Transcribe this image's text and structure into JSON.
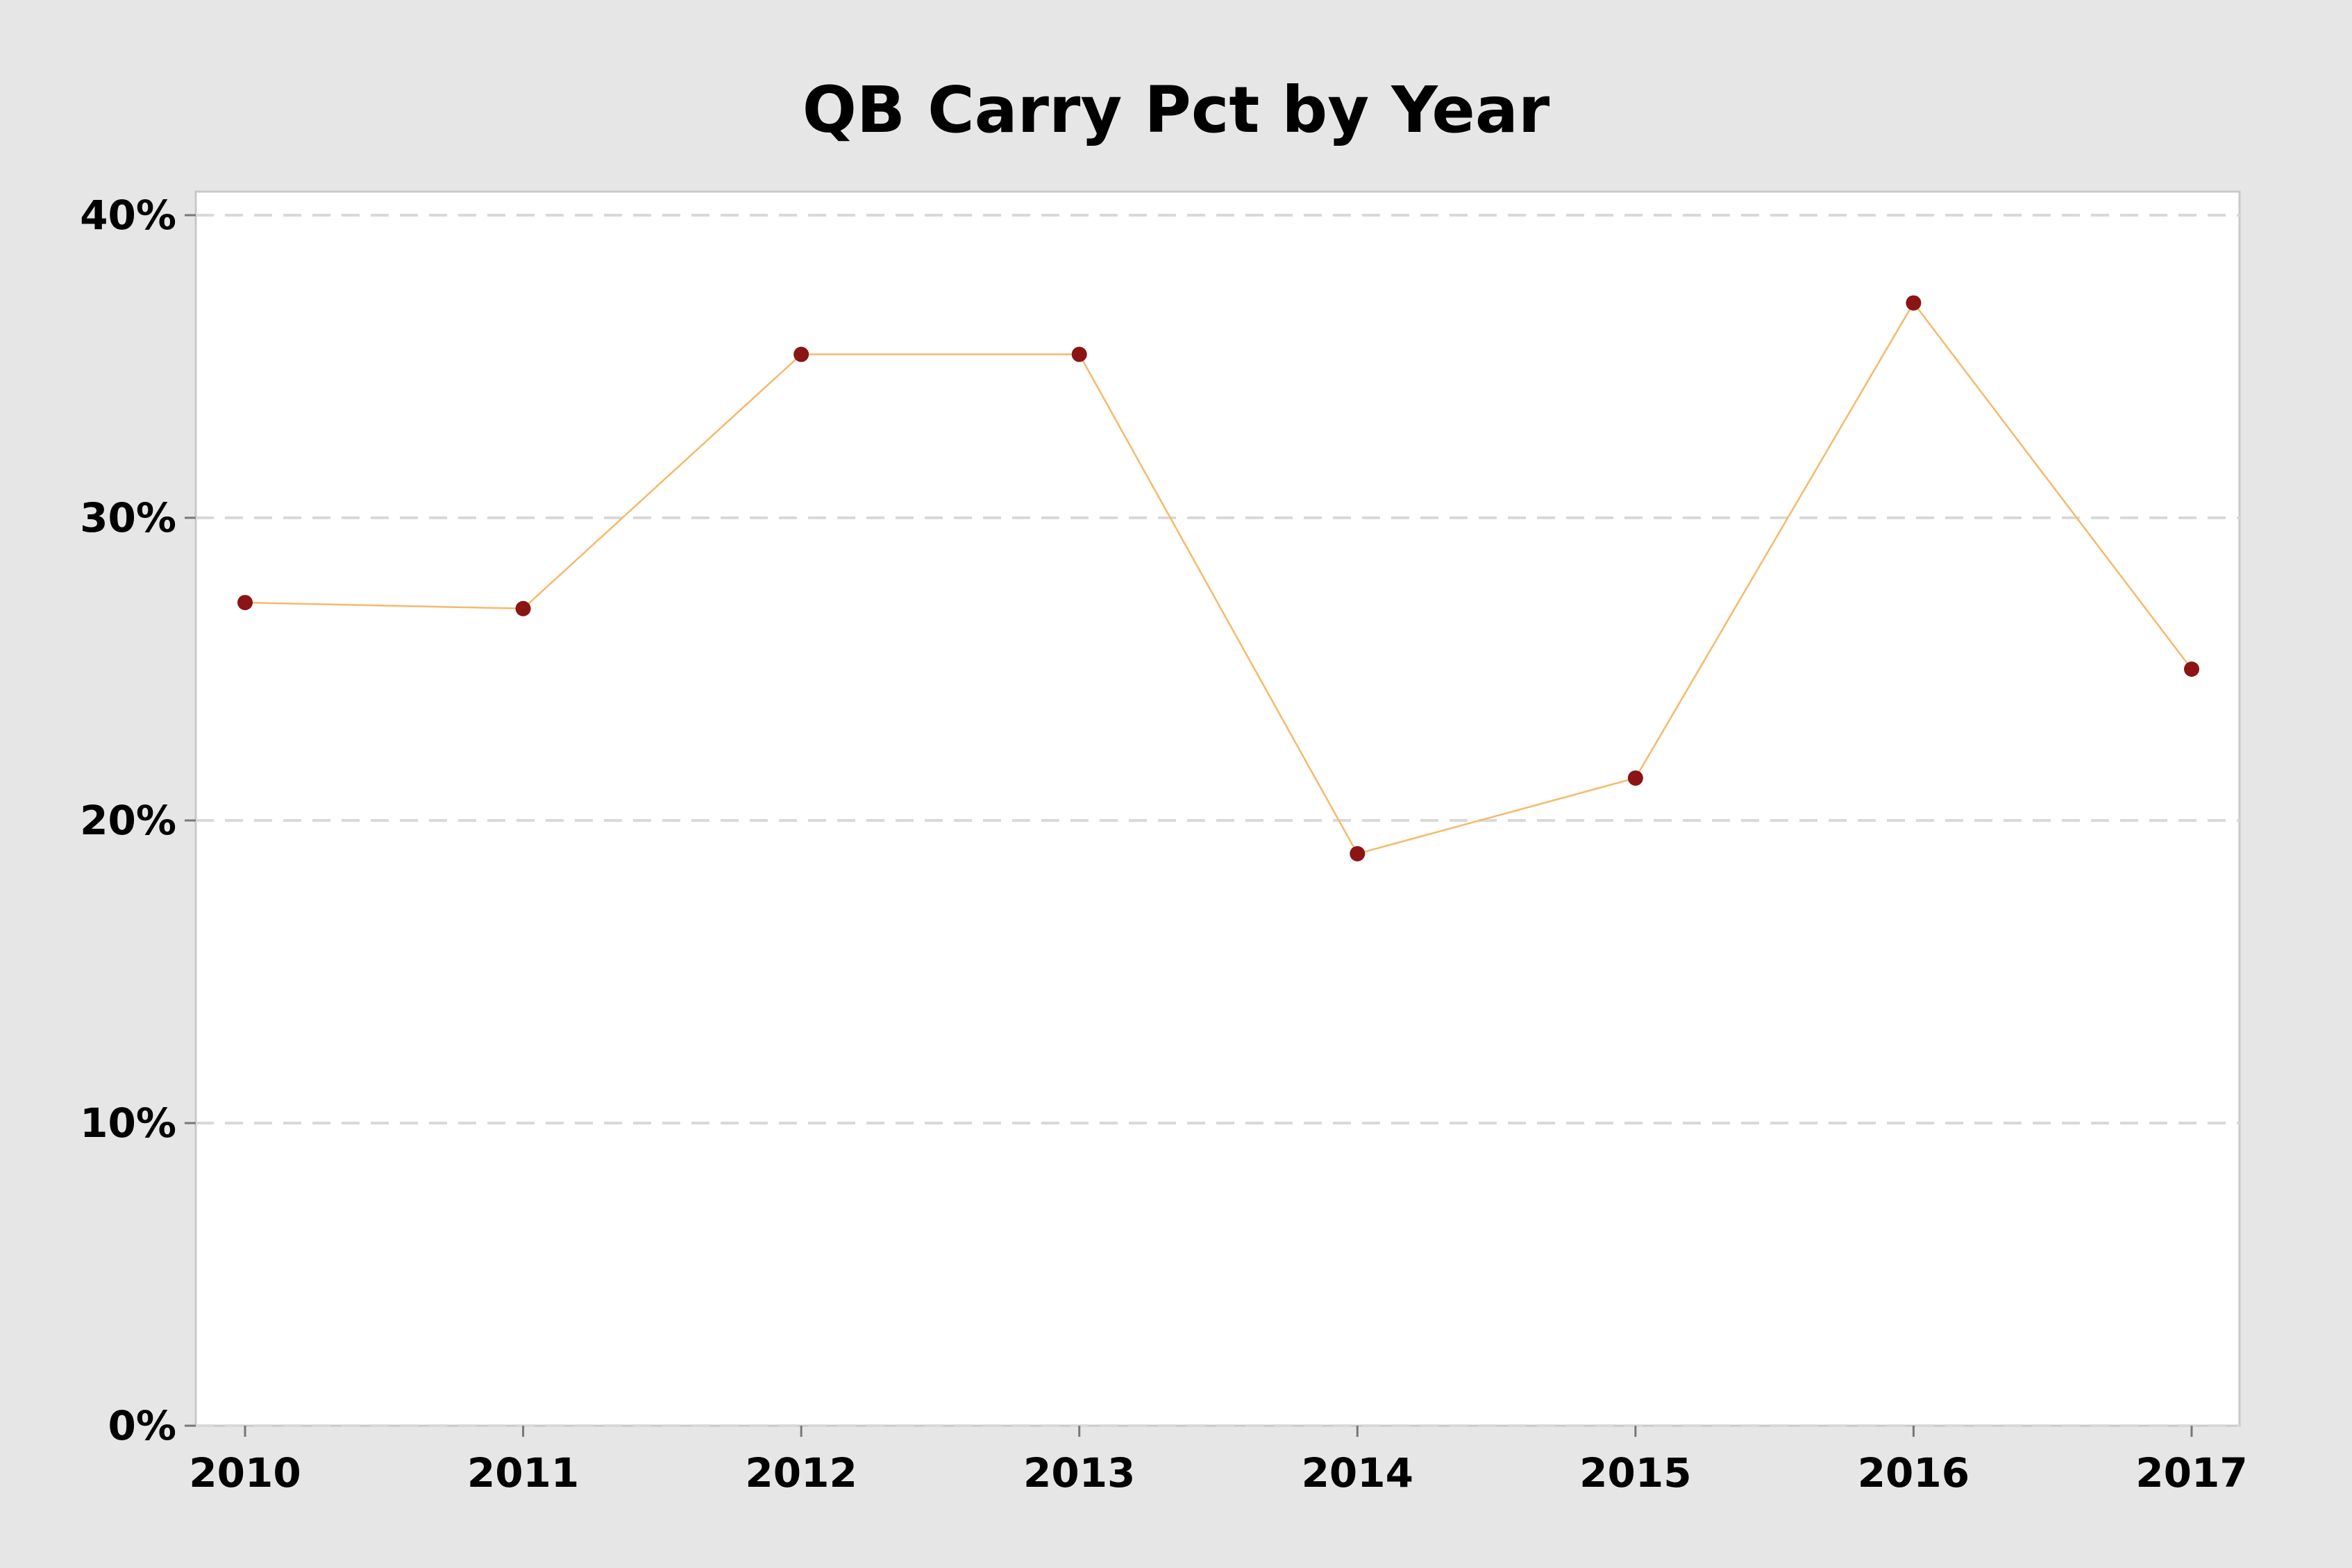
{
  "chart_data": {
    "type": "line",
    "title": "QB Carry Pct by Year",
    "xlabel": "",
    "ylabel": "",
    "categories": [
      "2010",
      "2011",
      "2012",
      "2013",
      "2014",
      "2015",
      "2016",
      "2017"
    ],
    "series": [
      {
        "values": [
          27.2,
          27.0,
          35.4,
          35.4,
          18.9,
          21.4,
          37.1,
          25.0
        ]
      }
    ],
    "ylim": [
      0,
      40
    ],
    "yticks": [
      0,
      10,
      20,
      30,
      40
    ],
    "ytick_labels": [
      "0%",
      "10%",
      "20%",
      "30%",
      "40%"
    ],
    "grid": "horizontal dashed",
    "colors": {
      "line": "#f5b96a",
      "marker": "#8b1414",
      "background": "#e6e6e6",
      "plot_background": "#ffffff",
      "gridline": "#d9d9d9"
    }
  }
}
